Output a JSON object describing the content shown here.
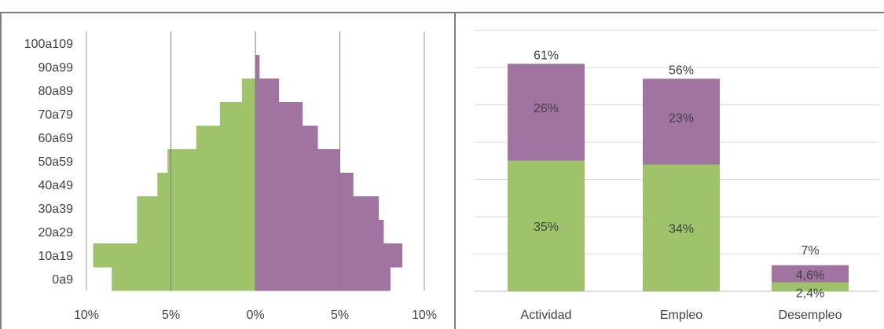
{
  "colors": {
    "green": "#9fc36a",
    "purple": "#a173a1",
    "axis": "#808080",
    "grid": "#d9d9d9",
    "text": "#404040"
  },
  "chart_data": [
    {
      "type": "bar",
      "orientation": "horizontal",
      "subtype": "population-pyramid",
      "categories": [
        "100a109",
        "90a99",
        "80a89",
        "70a79",
        "60a69",
        "50a59",
        "40a49",
        "30a39",
        "20a29",
        "10a19",
        "0a9"
      ],
      "series": [
        {
          "color": "#9fc36a",
          "side": "left",
          "values": [
            0.0,
            0.0,
            0.8,
            2.1,
            3.5,
            5.2,
            5.8,
            7.0,
            7.0,
            9.6,
            8.5
          ]
        },
        {
          "color": "#a173a1",
          "side": "right",
          "values": [
            0.0,
            0.25,
            1.4,
            2.8,
            3.7,
            5.0,
            5.8,
            7.3,
            7.6,
            8.7,
            8.0
          ]
        }
      ],
      "xlim": [
        -10,
        10
      ],
      "xticks": [
        -10,
        -5,
        0,
        5,
        10
      ],
      "xtick_labels": [
        "10%",
        "5%",
        "0%",
        "5%",
        "10%"
      ],
      "vertical_gridlines": [
        -5,
        0,
        5
      ],
      "title": "",
      "xlabel": "",
      "ylabel": ""
    },
    {
      "type": "bar",
      "orientation": "vertical",
      "stacked": true,
      "categories": [
        "Actividad",
        "Empleo",
        "Desempleo"
      ],
      "series": [
        {
          "color": "#9fc36a",
          "values": [
            35,
            34,
            2.4
          ],
          "labels": [
            "35%",
            "34%",
            "2,4%"
          ]
        },
        {
          "color": "#a173a1",
          "values": [
            26,
            23,
            4.6
          ],
          "labels": [
            "26%",
            "23%",
            "4,6%"
          ]
        }
      ],
      "totals": [
        61,
        56,
        7
      ],
      "total_labels": [
        "61%",
        "56%",
        "7%"
      ],
      "ylim": [
        0,
        70
      ],
      "grid": true,
      "title": "",
      "xlabel": "",
      "ylabel": ""
    }
  ]
}
